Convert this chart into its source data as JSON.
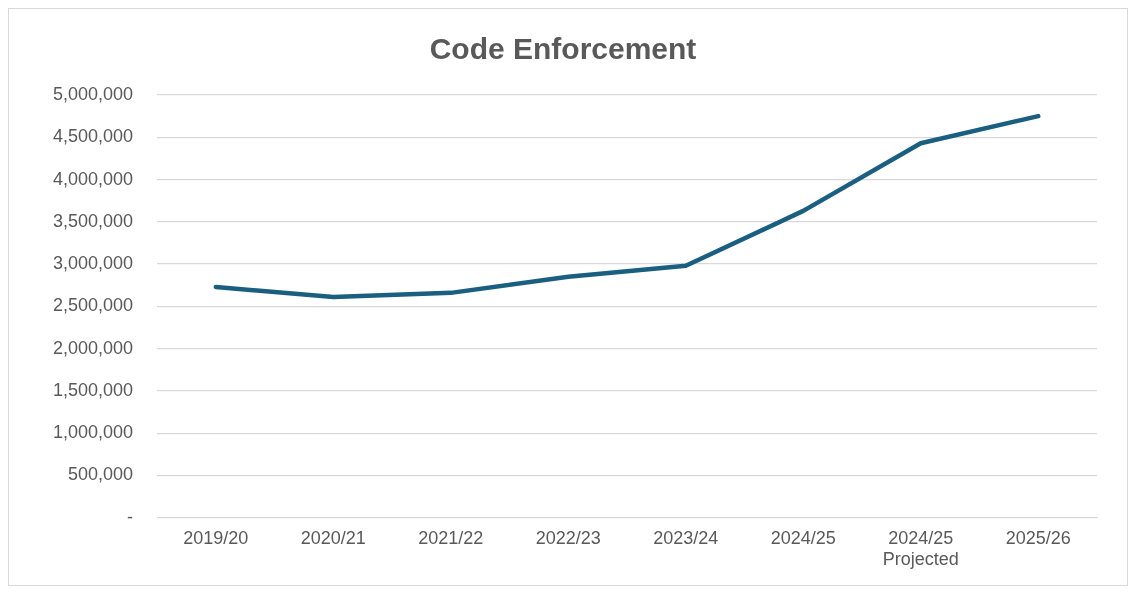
{
  "chart_data": {
    "type": "line",
    "title": "Code Enforcement",
    "categories": [
      "2019/20",
      "2020/21",
      "2021/22",
      "2022/23",
      "2023/24",
      "2024/25",
      "2024/25\nProjected",
      "2025/26"
    ],
    "series": [
      {
        "color": "#1a5e80",
        "values": [
          2730000,
          2610000,
          2660000,
          2850000,
          2980000,
          3630000,
          4430000,
          4750000
        ]
      }
    ],
    "ylim": [
      0,
      5000000
    ],
    "yticks": [
      {
        "value": 0,
        "label": "-"
      },
      {
        "value": 500000,
        "label": "500,000"
      },
      {
        "value": 1000000,
        "label": "1,000,000"
      },
      {
        "value": 1500000,
        "label": "1,500,000"
      },
      {
        "value": 2000000,
        "label": "2,000,000"
      },
      {
        "value": 2500000,
        "label": "2,500,000"
      },
      {
        "value": 3000000,
        "label": "3,000,000"
      },
      {
        "value": 3500000,
        "label": "3,500,000"
      },
      {
        "value": 4000000,
        "label": "4,000,000"
      },
      {
        "value": 4500000,
        "label": "4,500,000"
      },
      {
        "value": 5000000,
        "label": "5,000,000"
      }
    ],
    "grid": "y",
    "legend": false,
    "marker": "none",
    "line_style": "solid"
  }
}
